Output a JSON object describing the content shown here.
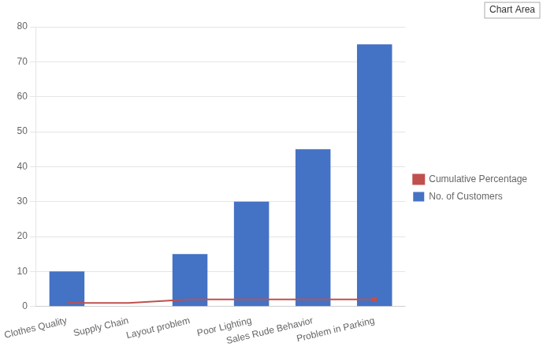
{
  "chart_data": {
    "type": "bar",
    "categories": [
      "Clothes Quality",
      "Supply Chain",
      "Layout problem",
      "Poor Lighting",
      "Sales Rude Behavior",
      "Problem in Parking"
    ],
    "series": [
      {
        "name": "No. of Customers",
        "color": "#4472C4",
        "values": [
          10,
          0,
          15,
          30,
          45,
          75
        ]
      },
      {
        "name": "Cumulative Percentage",
        "type": "line",
        "color": "#C0504D",
        "values": [
          1,
          1,
          2,
          2,
          2,
          2
        ]
      }
    ],
    "ylim": [
      0,
      80
    ],
    "yticks": [
      0,
      10,
      20,
      30,
      40,
      50,
      60,
      70,
      80
    ],
    "grid": true,
    "legend": "right",
    "annotations": [
      "Chart Area"
    ]
  }
}
